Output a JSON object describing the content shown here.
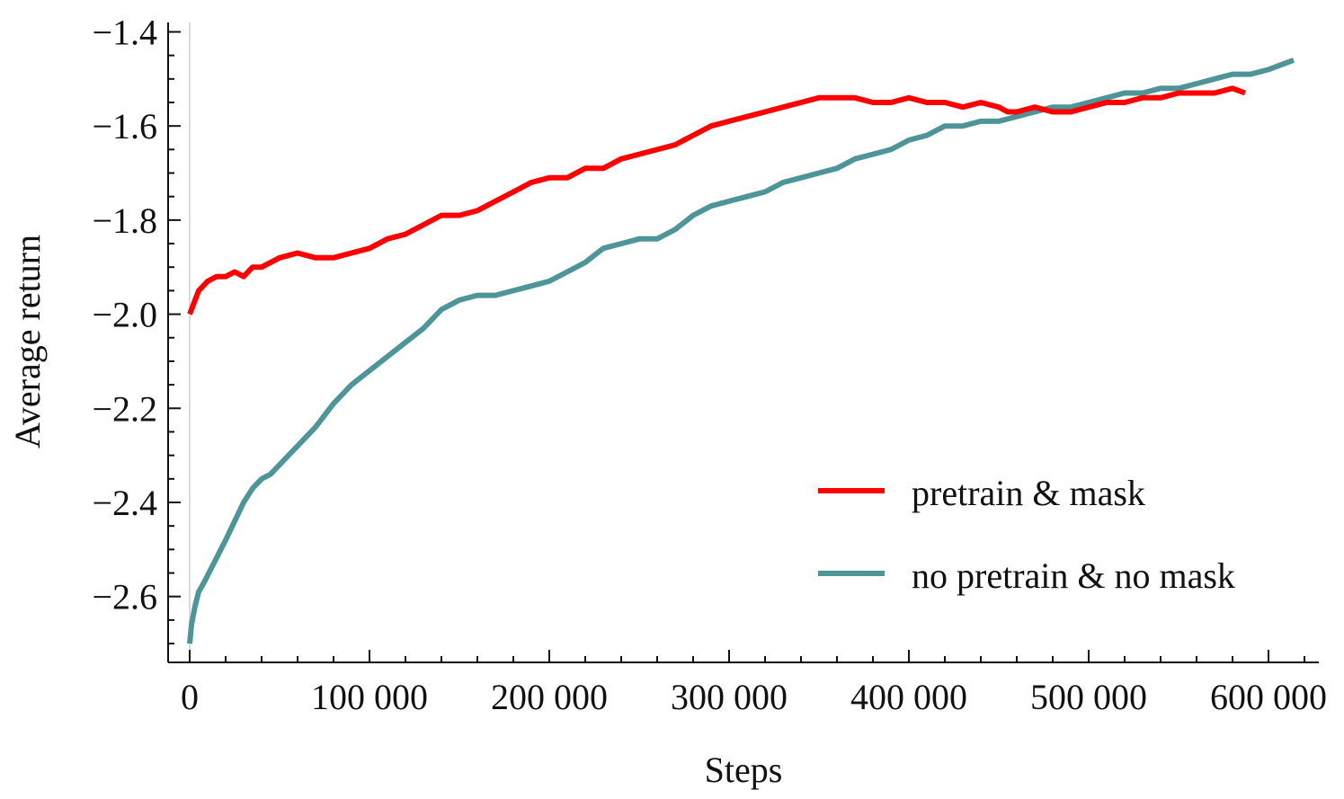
{
  "chart_data": {
    "type": "line",
    "title": "",
    "xlabel": "Steps",
    "ylabel": "Average return",
    "xlim": [
      -12000,
      628000
    ],
    "ylim": [
      -2.74,
      -1.38
    ],
    "x_ticks": [
      0,
      100000,
      200000,
      300000,
      400000,
      500000,
      600000
    ],
    "x_tick_labels": [
      "0",
      "100 000",
      "200 000",
      "300 000",
      "400 000",
      "500 000",
      "600 000"
    ],
    "y_ticks": [
      -1.4,
      -1.6,
      -1.8,
      -2.0,
      -2.2,
      -2.4,
      -2.6
    ],
    "y_tick_labels": [
      "−1.4",
      "−1.6",
      "−1.8",
      "−2.0",
      "−2.2",
      "−2.4",
      "−2.6"
    ],
    "grid": false,
    "legend_position": "bottom-right",
    "series": [
      {
        "name": "pretrain & mask",
        "color": "#ff0000",
        "x": [
          0,
          2000,
          5000,
          10000,
          15000,
          20000,
          25000,
          30000,
          35000,
          40000,
          50000,
          60000,
          70000,
          76000,
          80000,
          90000,
          100000,
          110000,
          120000,
          130000,
          140000,
          150000,
          160000,
          170000,
          180000,
          190000,
          200000,
          210000,
          220000,
          230000,
          240000,
          250000,
          260000,
          270000,
          280000,
          290000,
          300000,
          310000,
          320000,
          330000,
          340000,
          350000,
          360000,
          370000,
          380000,
          390000,
          400000,
          410000,
          420000,
          430000,
          440000,
          450000,
          455000,
          460000,
          470000,
          480000,
          490000,
          500000,
          510000,
          520000,
          530000,
          540000,
          550000,
          560000,
          570000,
          580000,
          587000
        ],
        "y": [
          -2.0,
          -1.98,
          -1.95,
          -1.93,
          -1.92,
          -1.92,
          -1.91,
          -1.92,
          -1.9,
          -1.9,
          -1.88,
          -1.87,
          -1.88,
          -1.88,
          -1.88,
          -1.87,
          -1.86,
          -1.84,
          -1.83,
          -1.81,
          -1.79,
          -1.79,
          -1.78,
          -1.76,
          -1.74,
          -1.72,
          -1.71,
          -1.71,
          -1.69,
          -1.69,
          -1.67,
          -1.66,
          -1.65,
          -1.64,
          -1.62,
          -1.6,
          -1.59,
          -1.58,
          -1.57,
          -1.56,
          -1.55,
          -1.54,
          -1.54,
          -1.54,
          -1.55,
          -1.55,
          -1.54,
          -1.55,
          -1.55,
          -1.56,
          -1.55,
          -1.56,
          -1.57,
          -1.57,
          -1.56,
          -1.57,
          -1.57,
          -1.56,
          -1.55,
          -1.55,
          -1.54,
          -1.54,
          -1.53,
          -1.53,
          -1.53,
          -1.52,
          -1.53
        ]
      },
      {
        "name": "no pretrain & no mask",
        "color": "#4d9598",
        "x": [
          0,
          1000,
          3000,
          5000,
          8000,
          12000,
          16000,
          20000,
          25000,
          30000,
          35000,
          40000,
          45000,
          50000,
          55000,
          60000,
          70000,
          80000,
          90000,
          100000,
          110000,
          120000,
          130000,
          140000,
          150000,
          160000,
          170000,
          180000,
          190000,
          200000,
          210000,
          220000,
          230000,
          240000,
          250000,
          260000,
          270000,
          280000,
          290000,
          300000,
          310000,
          320000,
          330000,
          340000,
          350000,
          360000,
          370000,
          380000,
          390000,
          400000,
          410000,
          420000,
          430000,
          440000,
          450000,
          460000,
          470000,
          480000,
          490000,
          500000,
          510000,
          520000,
          530000,
          540000,
          550000,
          560000,
          570000,
          580000,
          590000,
          600000,
          607000,
          614000
        ],
        "y": [
          -2.7,
          -2.66,
          -2.62,
          -2.59,
          -2.57,
          -2.54,
          -2.51,
          -2.48,
          -2.44,
          -2.4,
          -2.37,
          -2.35,
          -2.34,
          -2.32,
          -2.3,
          -2.28,
          -2.24,
          -2.19,
          -2.15,
          -2.12,
          -2.09,
          -2.06,
          -2.03,
          -1.99,
          -1.97,
          -1.96,
          -1.96,
          -1.95,
          -1.94,
          -1.93,
          -1.91,
          -1.89,
          -1.86,
          -1.85,
          -1.84,
          -1.84,
          -1.82,
          -1.79,
          -1.77,
          -1.76,
          -1.75,
          -1.74,
          -1.72,
          -1.71,
          -1.7,
          -1.69,
          -1.67,
          -1.66,
          -1.65,
          -1.63,
          -1.62,
          -1.6,
          -1.6,
          -1.59,
          -1.59,
          -1.58,
          -1.57,
          -1.56,
          -1.56,
          -1.55,
          -1.54,
          -1.53,
          -1.53,
          -1.52,
          -1.52,
          -1.51,
          -1.5,
          -1.49,
          -1.49,
          -1.48,
          -1.47,
          -1.46
        ]
      }
    ]
  }
}
